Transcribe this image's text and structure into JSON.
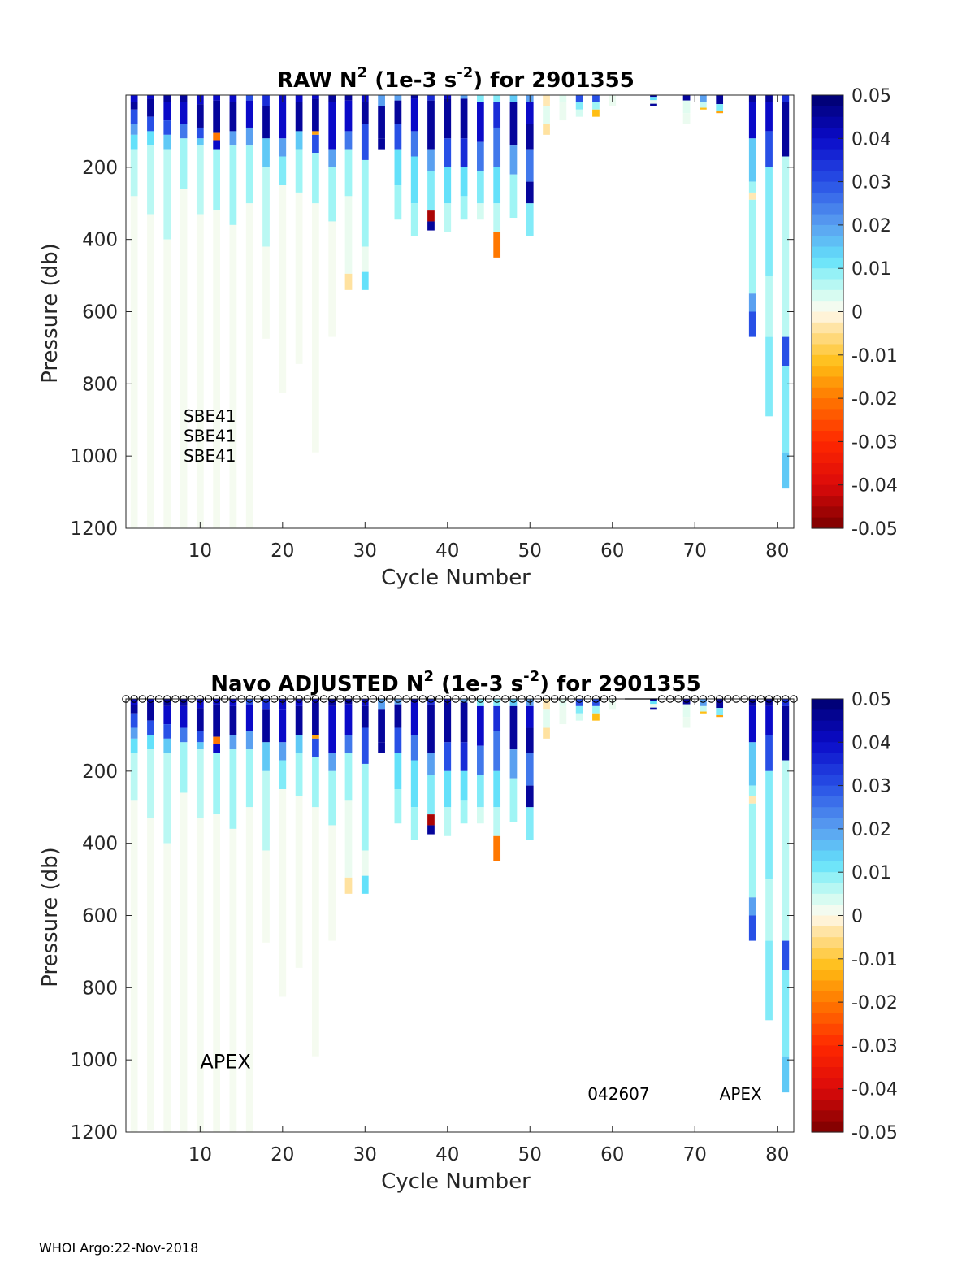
{
  "chart_data": [
    {
      "type": "heatmap",
      "title_prefix": "RAW N",
      "title_sup1": "2",
      "title_mid": " (1e-3 s",
      "title_sup2": "-2",
      "title_suffix": ") for 2901355",
      "xlabel": "Cycle Number",
      "ylabel": "Pressure (db)",
      "xlim": [
        1,
        82
      ],
      "ylim": [
        0,
        1200
      ],
      "y_reversed": true,
      "xticks": [
        10,
        20,
        30,
        40,
        50,
        60,
        70,
        80
      ],
      "yticks": [
        200,
        400,
        600,
        800,
        1000,
        1200
      ],
      "colorbar_ticks": [
        "0.05",
        "0.04",
        "0.03",
        "0.02",
        "0.01",
        "0",
        "-0.01",
        "-0.02",
        "-0.03",
        "-0.04",
        "-0.05"
      ],
      "colorbar_range": [
        -0.05,
        0.05
      ],
      "annotations": [
        {
          "text": "SBE41",
          "x": 8,
          "y": 905
        },
        {
          "text": "SBE41",
          "x": 8,
          "y": 960
        },
        {
          "text": "SBE41",
          "x": 8,
          "y": 1015
        }
      ],
      "markers": false
    },
    {
      "type": "heatmap",
      "title_prefix": "Navo  ADJUSTED N",
      "title_sup1": "2",
      "title_mid": " (1e-3 s",
      "title_sup2": "-2",
      "title_suffix": ") for 2901355",
      "xlabel": "Cycle Number",
      "ylabel": "Pressure (db)",
      "xlim": [
        1,
        82
      ],
      "ylim": [
        0,
        1200
      ],
      "y_reversed": true,
      "xticks": [
        10,
        20,
        30,
        40,
        50,
        60,
        70,
        80
      ],
      "yticks": [
        200,
        400,
        600,
        800,
        1000,
        1200
      ],
      "colorbar_ticks": [
        "0.05",
        "0.04",
        "0.03",
        "0.02",
        "0.01",
        "0",
        "-0.01",
        "-0.02",
        "-0.03",
        "-0.04",
        "-0.05"
      ],
      "colorbar_range": [
        -0.05,
        0.05
      ],
      "annotations": [
        {
          "text": "APEX",
          "x": 10,
          "y": 1010
        },
        {
          "text": "042607",
          "x": 57,
          "y": 1110
        },
        {
          "text": "APEX",
          "x": 73,
          "y": 1110
        }
      ],
      "markers": true
    }
  ],
  "profiles": {
    "columns": [
      {
        "cycle": 2,
        "max": 1200,
        "seg": [
          [
            0,
            18,
            0.04
          ],
          [
            18,
            40,
            0.045
          ],
          [
            40,
            80,
            0.03
          ],
          [
            80,
            110,
            0.02
          ],
          [
            110,
            150,
            0.012
          ],
          [
            150,
            280,
            0.006
          ],
          [
            280,
            1200,
            0.001
          ]
        ]
      },
      {
        "cycle": 4,
        "max": 1195,
        "seg": [
          [
            0,
            10,
            0.04
          ],
          [
            10,
            60,
            0.045
          ],
          [
            60,
            100,
            0.03
          ],
          [
            100,
            140,
            0.012
          ],
          [
            140,
            330,
            0.006
          ],
          [
            330,
            1195,
            0.001
          ]
        ]
      },
      {
        "cycle": 6,
        "max": 1200,
        "seg": [
          [
            0,
            20,
            0.045
          ],
          [
            20,
            70,
            0.04
          ],
          [
            70,
            110,
            0.03
          ],
          [
            110,
            150,
            0.015
          ],
          [
            150,
            400,
            0.006
          ],
          [
            400,
            1200,
            0.001
          ]
        ]
      },
      {
        "cycle": 8,
        "max": 1200,
        "seg": [
          [
            0,
            20,
            0.045
          ],
          [
            20,
            80,
            0.04
          ],
          [
            80,
            120,
            0.025
          ],
          [
            120,
            260,
            0.008
          ],
          [
            260,
            1200,
            0.001
          ]
        ]
      },
      {
        "cycle": 10,
        "max": 1200,
        "seg": [
          [
            0,
            25,
            0.04
          ],
          [
            25,
            90,
            0.045
          ],
          [
            90,
            120,
            0.03
          ],
          [
            120,
            140,
            0.015
          ],
          [
            140,
            330,
            0.006
          ],
          [
            330,
            1200,
            0.001
          ]
        ]
      },
      {
        "cycle": 12,
        "max": 1200,
        "seg": [
          [
            0,
            15,
            0.04
          ],
          [
            15,
            105,
            0.045
          ],
          [
            105,
            125,
            -0.02
          ],
          [
            125,
            150,
            0.04
          ],
          [
            150,
            320,
            0.008
          ],
          [
            320,
            1200,
            0.001
          ]
        ]
      },
      {
        "cycle": 14,
        "max": 1200,
        "seg": [
          [
            0,
            20,
            0.04
          ],
          [
            20,
            100,
            0.045
          ],
          [
            100,
            140,
            0.02
          ],
          [
            140,
            360,
            0.008
          ],
          [
            360,
            1200,
            0.001
          ]
        ]
      },
      {
        "cycle": 16,
        "max": 1200,
        "seg": [
          [
            0,
            15,
            0.03
          ],
          [
            15,
            90,
            0.04
          ],
          [
            90,
            140,
            0.02
          ],
          [
            140,
            300,
            0.008
          ],
          [
            300,
            1200,
            0.001
          ]
        ]
      },
      {
        "cycle": 18,
        "max": 675,
        "seg": [
          [
            0,
            30,
            0.035
          ],
          [
            30,
            120,
            0.045
          ],
          [
            120,
            200,
            0.015
          ],
          [
            200,
            420,
            0.006
          ],
          [
            420,
            675,
            0.001
          ]
        ]
      },
      {
        "cycle": 20,
        "max": 825,
        "seg": [
          [
            0,
            30,
            0.04
          ],
          [
            30,
            120,
            0.04
          ],
          [
            120,
            170,
            0.02
          ],
          [
            170,
            250,
            0.01
          ],
          [
            250,
            825,
            0.001
          ]
        ]
      },
      {
        "cycle": 22,
        "max": 745,
        "seg": [
          [
            0,
            20,
            0.04
          ],
          [
            20,
            100,
            0.045
          ],
          [
            100,
            150,
            0.015
          ],
          [
            150,
            270,
            0.008
          ],
          [
            270,
            745,
            0.001
          ]
        ]
      },
      {
        "cycle": 24,
        "max": 990,
        "seg": [
          [
            0,
            10,
            0.04
          ],
          [
            10,
            100,
            0.045
          ],
          [
            100,
            110,
            -0.015
          ],
          [
            110,
            160,
            0.03
          ],
          [
            160,
            300,
            0.008
          ],
          [
            300,
            990,
            0.001
          ]
        ]
      },
      {
        "cycle": 26,
        "max": 670,
        "seg": [
          [
            0,
            20,
            0.045
          ],
          [
            20,
            150,
            0.04
          ],
          [
            150,
            200,
            0.02
          ],
          [
            200,
            350,
            0.008
          ],
          [
            350,
            670,
            0.001
          ]
        ]
      },
      {
        "cycle": 28,
        "max": 540,
        "seg": [
          [
            0,
            15,
            0.045
          ],
          [
            15,
            100,
            0.04
          ],
          [
            100,
            150,
            0.025
          ],
          [
            150,
            280,
            0.008
          ],
          [
            280,
            495,
            0.002
          ],
          [
            495,
            540,
            -0.004
          ]
        ]
      },
      {
        "cycle": 30,
        "max": 540,
        "seg": [
          [
            0,
            20,
            0.04
          ],
          [
            20,
            80,
            0.045
          ],
          [
            80,
            180,
            0.03
          ],
          [
            180,
            420,
            0.008
          ],
          [
            420,
            490,
            0.002
          ],
          [
            490,
            540,
            0.012
          ]
        ]
      },
      {
        "cycle": 32,
        "max": 150,
        "seg": [
          [
            0,
            30,
            0.02
          ],
          [
            30,
            120,
            0.045
          ],
          [
            120,
            150,
            0.045
          ]
        ]
      },
      {
        "cycle": 34,
        "max": 345,
        "seg": [
          [
            0,
            15,
            0.02
          ],
          [
            15,
            80,
            0.045
          ],
          [
            80,
            150,
            0.03
          ],
          [
            150,
            250,
            0.012
          ],
          [
            250,
            345,
            0.008
          ]
        ]
      },
      {
        "cycle": 36,
        "max": 390,
        "seg": [
          [
            0,
            10,
            0.045
          ],
          [
            10,
            100,
            0.04
          ],
          [
            100,
            170,
            0.025
          ],
          [
            170,
            300,
            0.012
          ],
          [
            300,
            390,
            0.008
          ]
        ]
      },
      {
        "cycle": 38,
        "max": 375,
        "seg": [
          [
            0,
            15,
            0.035
          ],
          [
            15,
            150,
            0.045
          ],
          [
            150,
            210,
            0.02
          ],
          [
            210,
            320,
            0.01
          ],
          [
            320,
            350,
            -0.045
          ],
          [
            350,
            375,
            0.045
          ]
        ]
      },
      {
        "cycle": 40,
        "max": 380,
        "seg": [
          [
            0,
            10,
            0.04
          ],
          [
            10,
            120,
            0.045
          ],
          [
            120,
            200,
            0.03
          ],
          [
            200,
            300,
            0.012
          ],
          [
            300,
            380,
            0.006
          ]
        ]
      },
      {
        "cycle": 42,
        "max": 345,
        "seg": [
          [
            0,
            10,
            0.02
          ],
          [
            10,
            120,
            0.045
          ],
          [
            120,
            200,
            0.035
          ],
          [
            200,
            280,
            0.012
          ],
          [
            280,
            345,
            0.008
          ]
        ]
      },
      {
        "cycle": 44,
        "max": 345,
        "seg": [
          [
            0,
            20,
            0.01
          ],
          [
            20,
            130,
            0.04
          ],
          [
            130,
            210,
            0.025
          ],
          [
            210,
            300,
            0.01
          ],
          [
            300,
            345,
            0.004
          ]
        ]
      },
      {
        "cycle": 46,
        "max": 450,
        "seg": [
          [
            0,
            20,
            0.01
          ],
          [
            20,
            90,
            0.035
          ],
          [
            90,
            200,
            0.025
          ],
          [
            200,
            300,
            0.012
          ],
          [
            300,
            380,
            0.006
          ],
          [
            380,
            450,
            -0.02
          ]
        ]
      },
      {
        "cycle": 48,
        "max": 340,
        "seg": [
          [
            0,
            20,
            0.015
          ],
          [
            20,
            140,
            0.045
          ],
          [
            140,
            220,
            0.02
          ],
          [
            220,
            340,
            0.008
          ]
        ]
      },
      {
        "cycle": 50,
        "max": 390,
        "seg": [
          [
            0,
            20,
            0.02
          ],
          [
            20,
            80,
            0.04
          ],
          [
            80,
            150,
            0.045
          ],
          [
            150,
            240,
            0.025
          ],
          [
            240,
            300,
            0.045
          ],
          [
            300,
            390,
            0.01
          ]
        ]
      },
      {
        "cycle": 52,
        "max": 110,
        "seg": [
          [
            0,
            30,
            -0.003
          ],
          [
            30,
            80,
            0.003
          ],
          [
            80,
            110,
            -0.004
          ]
        ]
      },
      {
        "cycle": 54,
        "max": 70,
        "seg": [
          [
            0,
            20,
            0.003
          ],
          [
            20,
            70,
            0.002
          ]
        ]
      },
      {
        "cycle": 56,
        "max": 60,
        "seg": [
          [
            0,
            20,
            0.03
          ],
          [
            20,
            40,
            0.01
          ],
          [
            40,
            60,
            0.004
          ]
        ]
      },
      {
        "cycle": 58,
        "max": 60,
        "seg": [
          [
            0,
            20,
            0.03
          ],
          [
            20,
            40,
            0.008
          ],
          [
            40,
            60,
            -0.012
          ]
        ]
      },
      {
        "cycle": 60,
        "max": 30,
        "seg": [
          [
            0,
            30,
            0.002
          ]
        ]
      },
      {
        "cycle": 65,
        "max": 30,
        "seg": [
          [
            0,
            5,
            0.045
          ],
          [
            5,
            14,
            0.012
          ],
          [
            14,
            24,
            0.002
          ],
          [
            24,
            30,
            0.045
          ]
        ]
      },
      {
        "cycle": 69,
        "max": 80,
        "seg": [
          [
            0,
            15,
            0.045
          ],
          [
            15,
            50,
            0.003
          ],
          [
            50,
            80,
            0.002
          ]
        ]
      },
      {
        "cycle": 71,
        "max": 40,
        "seg": [
          [
            0,
            20,
            0.02
          ],
          [
            20,
            35,
            0.005
          ],
          [
            35,
            40,
            -0.012
          ]
        ]
      },
      {
        "cycle": 73,
        "max": 50,
        "seg": [
          [
            0,
            25,
            0.045
          ],
          [
            25,
            45,
            0.01
          ],
          [
            45,
            50,
            -0.015
          ]
        ]
      },
      {
        "cycle": 77,
        "max": 670,
        "seg": [
          [
            0,
            20,
            0.045
          ],
          [
            20,
            120,
            0.04
          ],
          [
            120,
            240,
            0.015
          ],
          [
            240,
            270,
            0.008
          ],
          [
            270,
            290,
            -0.003
          ],
          [
            290,
            550,
            0.008
          ],
          [
            550,
            600,
            0.02
          ],
          [
            600,
            670,
            0.03
          ]
        ]
      },
      {
        "cycle": 79,
        "max": 890,
        "seg": [
          [
            0,
            20,
            0.045
          ],
          [
            20,
            100,
            0.04
          ],
          [
            100,
            200,
            0.03
          ],
          [
            200,
            500,
            0.01
          ],
          [
            500,
            670,
            0.006
          ],
          [
            670,
            890,
            0.01
          ]
        ]
      },
      {
        "cycle": 81,
        "max": 1090,
        "seg": [
          [
            0,
            20,
            0.035
          ],
          [
            20,
            170,
            0.045
          ],
          [
            170,
            670,
            0.006
          ],
          [
            670,
            750,
            0.03
          ],
          [
            750,
            990,
            0.01
          ],
          [
            990,
            1090,
            0.015
          ]
        ]
      }
    ]
  },
  "footer": "WHOI Argo:22-Nov-2018"
}
